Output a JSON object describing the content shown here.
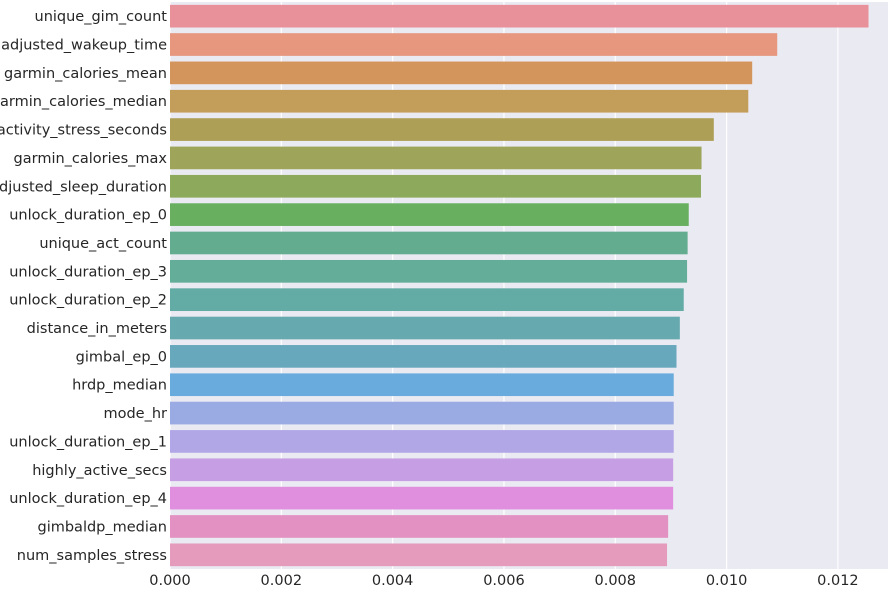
{
  "chart_data": {
    "type": "bar",
    "orientation": "horizontal",
    "title": "",
    "xlabel": "",
    "ylabel": "",
    "xlim": [
      0,
      0.0129
    ],
    "grid": true,
    "legend": "none",
    "background_color": "#eaeaf2",
    "grid_color": "#ffffff",
    "x_ticks": [
      "0.000",
      "0.002",
      "0.004",
      "0.006",
      "0.008",
      "0.010",
      "0.012"
    ],
    "x_tick_values": [
      0,
      0.002,
      0.004,
      0.006,
      0.008,
      0.01,
      0.012
    ],
    "categories": [
      "unique_gim_count",
      "adjusted_wakeup_time",
      "garmin_calories_mean",
      "garmin_calories_median",
      "activity_stress_seconds",
      "garmin_calories_max",
      "adjusted_sleep_duration",
      "unlock_duration_ep_0",
      "unique_act_count",
      "unlock_duration_ep_3",
      "unlock_duration_ep_2",
      "distance_in_meters",
      "gimbal_ep_0",
      "hrdp_median",
      "mode_hr",
      "unlock_duration_ep_1",
      "highly_active_secs",
      "unlock_duration_ep_4",
      "gimbaldp_median",
      "num_samples_stress"
    ],
    "values": [
      0.01255,
      0.01091,
      0.01046,
      0.01039,
      0.00977,
      0.00955,
      0.00954,
      0.00932,
      0.0093,
      0.00929,
      0.00923,
      0.00916,
      0.0091,
      0.00905,
      0.00905,
      0.00905,
      0.00904,
      0.00904,
      0.00895,
      0.00893
    ],
    "colors": [
      "#e8919b",
      "#e6977e",
      "#d4955c",
      "#c39d5a",
      "#ae9f56",
      "#9ea55a",
      "#8da95c",
      "#68af60",
      "#64ac8f",
      "#64ad99",
      "#63aba5",
      "#66a9ae",
      "#68a8bd",
      "#6aabdd",
      "#9aaae3",
      "#b1a6e6",
      "#c69ee4",
      "#df8fde",
      "#e291c2",
      "#e49bbc"
    ]
  }
}
